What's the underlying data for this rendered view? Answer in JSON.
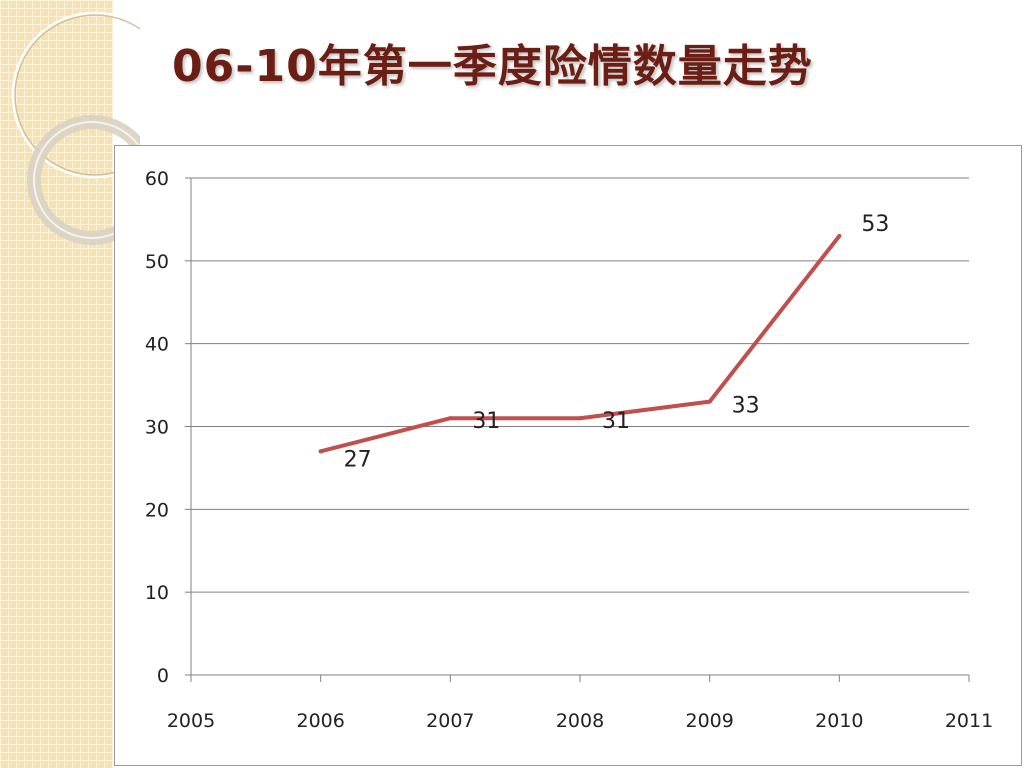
{
  "slide": {
    "title": "06-10年第一季度险情数量走势"
  },
  "colors": {
    "line": "#c0504d",
    "grid": "#808080",
    "title": "#6b1e14",
    "panel": "#f5e3b6"
  },
  "chart_data": {
    "type": "line",
    "title": "",
    "xlabel": "",
    "ylabel": "",
    "x_ticks": [
      "2005",
      "2006",
      "2007",
      "2008",
      "2009",
      "2010",
      "2011"
    ],
    "y_ticks": [
      "0",
      "10",
      "20",
      "30",
      "40",
      "50",
      "60"
    ],
    "xlim": [
      2005,
      2011
    ],
    "ylim": [
      0,
      60
    ],
    "grid": true,
    "legend": "none",
    "series": [
      {
        "x": [
          2006,
          2007,
          2008,
          2009,
          2010
        ],
        "values": [
          27,
          31,
          31,
          33,
          53
        ],
        "labels": [
          "27",
          "31",
          "31",
          "33",
          "53"
        ]
      }
    ]
  }
}
